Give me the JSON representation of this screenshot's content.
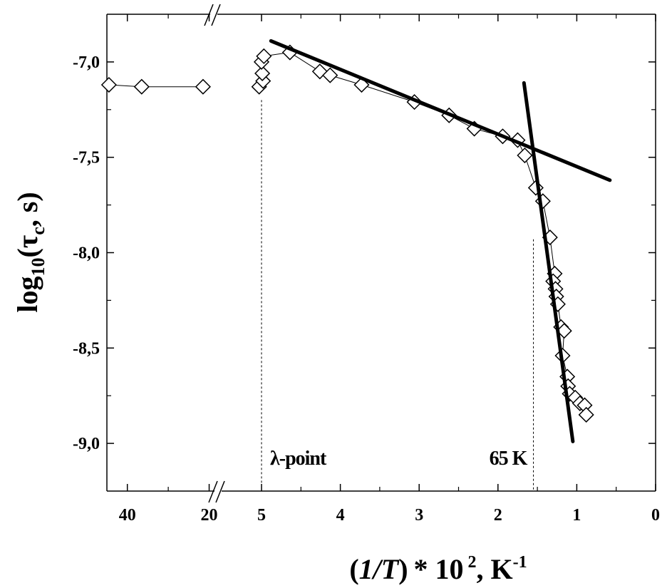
{
  "chart_data": {
    "type": "scatter",
    "title": "",
    "xlabel": {
      "paren_open": "(",
      "var": "1/T",
      "paren_close": ")",
      "mult": "* 10",
      "sup": "2",
      "unit": ", K",
      "unit_sup": "-1"
    },
    "ylabel": {
      "base": "log",
      "sub": "10",
      "arg": "(τ",
      "arg_sub": "c",
      "rest": ", s)"
    },
    "x_axis": {
      "reversed": true,
      "broken": true,
      "segments": [
        {
          "range": [
            45,
            18
          ],
          "ticks": [
            40,
            20
          ]
        },
        {
          "range": [
            5.3,
            0
          ],
          "ticks": [
            5,
            4,
            3,
            2,
            1,
            0
          ]
        }
      ]
    },
    "y_axis": {
      "ylim": [
        -9.25,
        -6.75
      ],
      "ticks": [
        -7.0,
        -7.5,
        -8.0,
        -8.5,
        -9.0
      ],
      "tick_labels": [
        "-7,0",
        "-7,5",
        "-8,0",
        "-8,5",
        "-9,0"
      ]
    },
    "grid": false,
    "series": [
      {
        "name": "",
        "marker": "diamond",
        "connected": true,
        "left_segment_points": [
          [
            44.5,
            -7.12
          ],
          [
            36.5,
            -7.13
          ],
          [
            21.5,
            -7.13
          ]
        ],
        "right_segment_points": [
          [
            5.03,
            -7.13
          ],
          [
            4.98,
            -7.1
          ],
          [
            4.99,
            -7.06
          ],
          [
            5.0,
            -7.0
          ],
          [
            4.97,
            -6.97
          ],
          [
            4.64,
            -6.95
          ],
          [
            4.26,
            -7.05
          ],
          [
            4.13,
            -7.07
          ],
          [
            3.73,
            -7.12
          ],
          [
            3.06,
            -7.21
          ],
          [
            2.62,
            -7.28
          ],
          [
            2.3,
            -7.35
          ],
          [
            1.94,
            -7.39
          ],
          [
            1.75,
            -7.41
          ],
          [
            1.66,
            -7.49
          ],
          [
            1.52,
            -7.66
          ],
          [
            1.43,
            -7.73
          ],
          [
            1.34,
            -7.92
          ],
          [
            1.28,
            -8.11
          ],
          [
            1.3,
            -8.15
          ],
          [
            1.27,
            -8.19
          ],
          [
            1.26,
            -8.23
          ],
          [
            1.24,
            -8.27
          ],
          [
            1.2,
            -8.39
          ],
          [
            1.16,
            -8.41
          ],
          [
            1.18,
            -8.54
          ],
          [
            1.12,
            -8.65
          ],
          [
            1.11,
            -8.7
          ],
          [
            1.09,
            -8.74
          ],
          [
            1.02,
            -8.76
          ],
          [
            0.96,
            -8.79
          ],
          [
            0.9,
            -8.8
          ],
          [
            0.88,
            -8.85
          ]
        ]
      }
    ],
    "fit_lines": [
      {
        "from": [
          4.88,
          -6.89
        ],
        "to": [
          0.58,
          -7.62
        ]
      },
      {
        "from": [
          1.67,
          -7.11
        ],
        "to": [
          1.05,
          -8.99
        ]
      }
    ],
    "annotations": [
      {
        "text": "λ-point",
        "x": 5.0
      },
      {
        "text": "65 K",
        "x": 1.55
      }
    ]
  }
}
